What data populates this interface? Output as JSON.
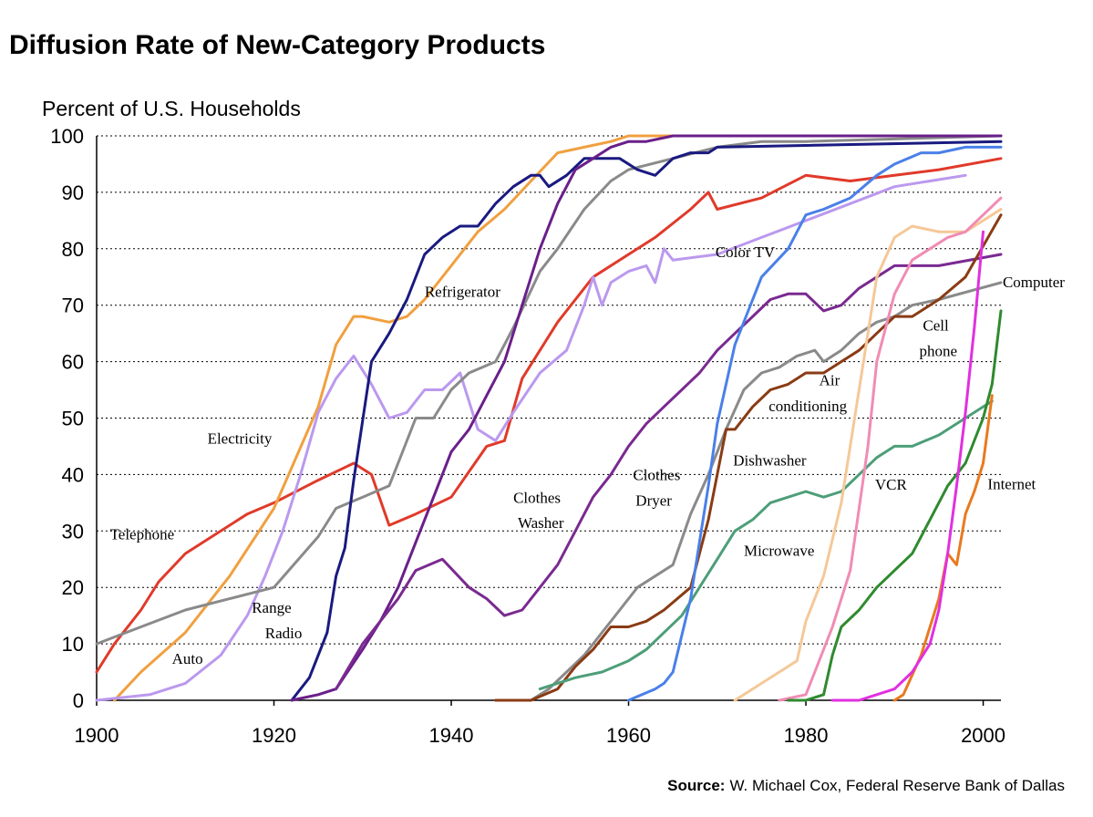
{
  "chart_data": {
    "type": "line",
    "title": "Diffusion Rate of New-Category Products",
    "ylabel": "Percent of U.S. Households",
    "xlabel": "",
    "xlim": [
      1900,
      2002
    ],
    "ylim": [
      0,
      100
    ],
    "xticks": [
      1900,
      1920,
      1940,
      1960,
      1980,
      2000
    ],
    "yticks": [
      0,
      10,
      20,
      30,
      40,
      50,
      60,
      70,
      80,
      90,
      100
    ],
    "grid": "horizontal-dotted",
    "source_label": "Source:",
    "source_text": "W. Michael Cox, Federal Reserve Bank of Dallas",
    "series": [
      {
        "name": "Telephone",
        "color": "#e03a2a",
        "x": [
          1900,
          1902,
          1905,
          1907,
          1910,
          1913,
          1917,
          1920,
          1925,
          1929,
          1931,
          1933,
          1936,
          1940,
          1944,
          1946,
          1948,
          1952,
          1956,
          1960,
          1963,
          1967,
          1969,
          1970,
          1975,
          1980,
          1985,
          1990,
          1995,
          2002
        ],
        "y": [
          5,
          10,
          16,
          21,
          26,
          29,
          33,
          35,
          39,
          42,
          40,
          31,
          33,
          36,
          45,
          46,
          57,
          67,
          75,
          79,
          82,
          87,
          90,
          87,
          89,
          93,
          92,
          93,
          94,
          96
        ]
      },
      {
        "name": "Electricity",
        "color": "#f0a040",
        "x": [
          1902,
          1905,
          1910,
          1915,
          1920,
          1925,
          1927,
          1929,
          1930,
          1933,
          1935,
          1937,
          1940,
          1943,
          1946,
          1949,
          1952,
          1955,
          1958,
          1960,
          2002
        ],
        "y": [
          0,
          5,
          12,
          22,
          34,
          52,
          63,
          68,
          68,
          67,
          68,
          71,
          77,
          83,
          87,
          92,
          97,
          98,
          99,
          100,
          100
        ]
      },
      {
        "name": "Radio",
        "color": "#bb99ee",
        "x": [
          1900,
          1906,
          1910,
          1914,
          1917,
          1919,
          1921,
          1923,
          1925,
          1927,
          1929,
          1931,
          1933,
          1935,
          1937,
          1939,
          1941,
          1943,
          1945,
          1947,
          1950,
          1953,
          1955,
          1956,
          1957,
          1958,
          1960,
          1962,
          1963,
          1964,
          1965,
          1970,
          1975,
          1980,
          1985,
          1990,
          1998
        ],
        "y": [
          0,
          1,
          3,
          8,
          15,
          22,
          30,
          40,
          51,
          57,
          61,
          56,
          50,
          51,
          55,
          55,
          58,
          48,
          46,
          51,
          58,
          62,
          70,
          75,
          70,
          74,
          76,
          77,
          74,
          80,
          78,
          79,
          82,
          85,
          88,
          91,
          93
        ]
      },
      {
        "name": "Auto",
        "color": "#8a8a8a",
        "x": [
          1900,
          1905,
          1910,
          1915,
          1920,
          1925,
          1927,
          1930,
          1933,
          1934,
          1936,
          1938,
          1940,
          1942,
          1945,
          1947,
          1950,
          1952,
          1955,
          1958,
          1960,
          1965,
          1970,
          1975,
          1980,
          2002
        ],
        "y": [
          10,
          13,
          16,
          18,
          20,
          29,
          34,
          36,
          38,
          42,
          50,
          50,
          55,
          58,
          60,
          66,
          76,
          80,
          87,
          92,
          94,
          96,
          98,
          99,
          99,
          100
        ]
      },
      {
        "name": "Refrigerator",
        "color": "#1a1a80",
        "x": [
          1922,
          1924,
          1926,
          1927,
          1928,
          1929,
          1931,
          1933,
          1935,
          1937,
          1939,
          1941,
          1943,
          1945,
          1947,
          1949,
          1950,
          1951,
          1953,
          1955,
          1957,
          1959,
          1961,
          1963,
          1965,
          1967,
          1969,
          1970,
          2002
        ],
        "y": [
          0,
          4,
          12,
          22,
          27,
          39,
          60,
          65,
          71,
          79,
          82,
          84,
          84,
          88,
          91,
          93,
          93,
          91,
          93,
          96,
          96,
          96,
          94,
          93,
          96,
          97,
          97,
          98,
          99
        ]
      },
      {
        "name": "Range",
        "color": "#6a1f8a",
        "x": [
          1922,
          1925,
          1927,
          1930,
          1932,
          1934,
          1936,
          1938,
          1940,
          1942,
          1944,
          1946,
          1948,
          1950,
          1952,
          1954,
          1956,
          1958,
          1960,
          1962,
          1965,
          1970,
          1975,
          1980,
          2002
        ],
        "y": [
          0,
          1,
          2,
          9,
          14,
          20,
          28,
          36,
          44,
          48,
          54,
          60,
          70,
          80,
          88,
          94,
          96,
          98,
          99,
          99,
          100,
          100,
          100,
          100,
          100
        ]
      },
      {
        "name": "Clothes Washer",
        "color": "#7a2a90",
        "x": [
          1927,
          1930,
          1932,
          1934,
          1936,
          1939,
          1942,
          1944,
          1946,
          1948,
          1950,
          1952,
          1954,
          1956,
          1958,
          1960,
          1962,
          1964,
          1966,
          1968,
          1970,
          1972,
          1974,
          1976,
          1978,
          1980,
          1982,
          1984,
          1986,
          1988,
          1990,
          1995,
          2002
        ],
        "y": [
          2,
          10,
          14,
          18,
          23,
          25,
          20,
          18,
          15,
          16,
          20,
          24,
          30,
          36,
          40,
          45,
          49,
          52,
          55,
          58,
          62,
          65,
          68,
          71,
          72,
          72,
          69,
          70,
          73,
          75,
          77,
          77,
          79
        ]
      },
      {
        "name": "Clothes Dryer",
        "color": "#8a8a8a",
        "x": [
          1949,
          1951,
          1953,
          1955,
          1957,
          1959,
          1961,
          1963,
          1965,
          1967,
          1969,
          1971,
          1973,
          1975,
          1977,
          1979,
          1981,
          1982,
          1984,
          1986,
          1988,
          1990,
          1992,
          1995,
          2002
        ],
        "y": [
          0,
          2,
          5,
          8,
          12,
          16,
          20,
          22,
          24,
          33,
          40,
          48,
          55,
          58,
          59,
          61,
          62,
          60,
          62,
          65,
          67,
          68,
          70,
          71,
          74
        ]
      },
      {
        "name": "Air conditioning",
        "color": "#8a3b14",
        "x": [
          1945,
          1949,
          1952,
          1954,
          1956,
          1958,
          1960,
          1962,
          1964,
          1967,
          1969,
          1971,
          1972,
          1974,
          1976,
          1978,
          1980,
          1982,
          1984,
          1986,
          1988,
          1990,
          1992,
          1995,
          1998,
          2002
        ],
        "y": [
          0,
          0,
          2,
          6,
          9,
          13,
          13,
          14,
          16,
          20,
          32,
          48,
          48,
          52,
          55,
          56,
          58,
          58,
          60,
          62,
          65,
          68,
          68,
          71,
          75,
          86
        ]
      },
      {
        "name": "Microwave",
        "color": "#4d9e78",
        "x": [
          1950,
          1954,
          1957,
          1960,
          1962,
          1964,
          1966,
          1968,
          1970,
          1972,
          1974,
          1976,
          1978,
          1980,
          1982,
          1984,
          1986,
          1988,
          1990,
          1992,
          1995,
          1998,
          2001
        ],
        "y": [
          2,
          4,
          5,
          7,
          9,
          12,
          15,
          20,
          25,
          30,
          32,
          35,
          36,
          37,
          36,
          37,
          40,
          43,
          45,
          45,
          47,
          50,
          53
        ]
      },
      {
        "name": "Color TV",
        "color": "#4a80e8",
        "x": [
          1960,
          1963,
          1964,
          1965,
          1967,
          1968,
          1969,
          1970,
          1972,
          1975,
          1978,
          1980,
          1982,
          1985,
          1988,
          1990,
          1993,
          1995,
          1998,
          2002
        ],
        "y": [
          0,
          2,
          3,
          5,
          18,
          28,
          38,
          49,
          63,
          75,
          80,
          86,
          87,
          89,
          93,
          95,
          97,
          97,
          98,
          98
        ]
      },
      {
        "name": "VCR",
        "color": "#f5c898",
        "x": [
          1972,
          1975,
          1977,
          1979,
          1980,
          1982,
          1984,
          1986,
          1988,
          1990,
          1992,
          1995,
          1998,
          2002
        ],
        "y": [
          0,
          3,
          5,
          7,
          14,
          22,
          35,
          55,
          75,
          82,
          84,
          83,
          83,
          87
        ]
      },
      {
        "name": "Cell phone",
        "color": "#f08cb4",
        "x": [
          1977,
          1980,
          1981,
          1983,
          1985,
          1987,
          1988,
          1990,
          1992,
          1994,
          1996,
          1998,
          2002
        ],
        "y": [
          0,
          1,
          5,
          13,
          23,
          45,
          60,
          72,
          78,
          80,
          82,
          83,
          89
        ]
      },
      {
        "name": "Computer",
        "color": "#2f8a2f",
        "x": [
          1978,
          1980,
          1982,
          1983,
          1984,
          1986,
          1988,
          1990,
          1992,
          1994,
          1996,
          1998,
          2000,
          2001,
          2002
        ],
        "y": [
          0,
          0,
          1,
          8,
          13,
          16,
          20,
          23,
          26,
          32,
          38,
          42,
          50,
          56,
          69
        ]
      },
      {
        "name": "Internet",
        "color": "#e87a20",
        "x": [
          1990,
          1991,
          1993,
          1995,
          1996,
          1997,
          1998,
          1999,
          2000,
          2001
        ],
        "y": [
          0,
          1,
          8,
          18,
          26,
          24,
          33,
          37,
          42,
          54
        ]
      },
      {
        "name": "Cell phone (late)",
        "color": "#e030e0",
        "x": [
          1983,
          1986,
          1988,
          1990,
          1992,
          1994,
          1995,
          1996,
          1997,
          1998,
          1999,
          2000
        ],
        "y": [
          0,
          0,
          1,
          2,
          5,
          10,
          16,
          26,
          38,
          51,
          66,
          83
        ]
      }
    ],
    "annotations": [
      {
        "text": "Telephone",
        "x": 1901.5,
        "y": 28.5
      },
      {
        "text": "Electricity",
        "x": 1912.5,
        "y": 45.5
      },
      {
        "text": "Range",
        "x": 1917.5,
        "y": 15.5
      },
      {
        "text": "Radio",
        "x": 1919,
        "y": 11
      },
      {
        "text": "Auto",
        "x": 1908.5,
        "y": 6.5
      },
      {
        "text": "Refrigerator",
        "x": 1937,
        "y": 71.5
      },
      {
        "text": "Clothes",
        "x": 1947,
        "y": 35
      },
      {
        "text": "Washer",
        "x": 1947.5,
        "y": 30.5
      },
      {
        "text": "Clothes",
        "x": 1960.5,
        "y": 39
      },
      {
        "text": "Dryer",
        "x": 1960.8,
        "y": 34.5
      },
      {
        "text": "Color TV",
        "x": 1969.8,
        "y": 78.5
      },
      {
        "text": "Computer",
        "x": 2002.2,
        "y": 73.2
      },
      {
        "text": "Cell",
        "x": 1993.2,
        "y": 65.5
      },
      {
        "text": "phone",
        "x": 1992.8,
        "y": 61
      },
      {
        "text": "Air",
        "x": 1981.5,
        "y": 55.8
      },
      {
        "text": "conditioning",
        "x": 1975.8,
        "y": 51.2
      },
      {
        "text": "Dishwasher",
        "x": 1971.8,
        "y": 41.6
      },
      {
        "text": "VCR",
        "x": 1987.8,
        "y": 37.3
      },
      {
        "text": "Internet",
        "x": 2000.5,
        "y": 37.4
      },
      {
        "text": "Microwave",
        "x": 1973,
        "y": 25.6
      }
    ]
  }
}
